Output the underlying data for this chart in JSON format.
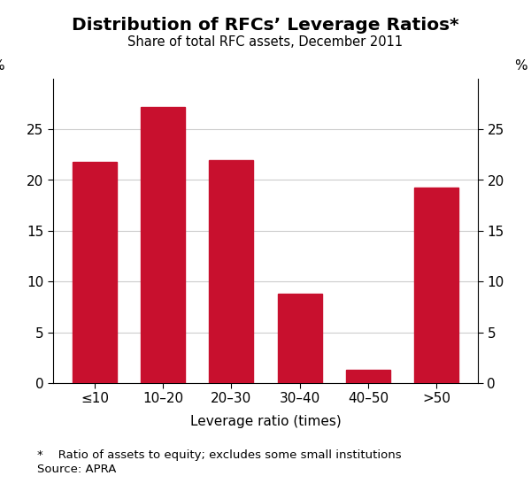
{
  "categories": [
    "≤10",
    "10–20",
    "20–30",
    "30–40",
    "40–50",
    ">50"
  ],
  "values": [
    21.8,
    27.2,
    22.0,
    8.8,
    1.3,
    19.3
  ],
  "bar_color": "#C8102E",
  "title": "Distribution of RFCs’ Leverage Ratios*",
  "subtitle": "Share of total RFC assets, December 2011",
  "xlabel": "Leverage ratio (times)",
  "ylabel_left": "%",
  "ylabel_right": "%",
  "ylim": [
    0,
    30
  ],
  "yticks": [
    0,
    5,
    10,
    15,
    20,
    25
  ],
  "ytick_labels": [
    "0",
    "5",
    "10",
    "15",
    "20",
    "25"
  ],
  "footnote1": "*    Ratio of assets to equity; excludes some small institutions",
  "footnote2": "Source: APRA",
  "title_fontsize": 14.5,
  "subtitle_fontsize": 10.5,
  "xlabel_fontsize": 11,
  "tick_fontsize": 11,
  "footnote_fontsize": 9.5,
  "background_color": "#ffffff",
  "bar_width": 0.65,
  "grid_color": "#cccccc"
}
